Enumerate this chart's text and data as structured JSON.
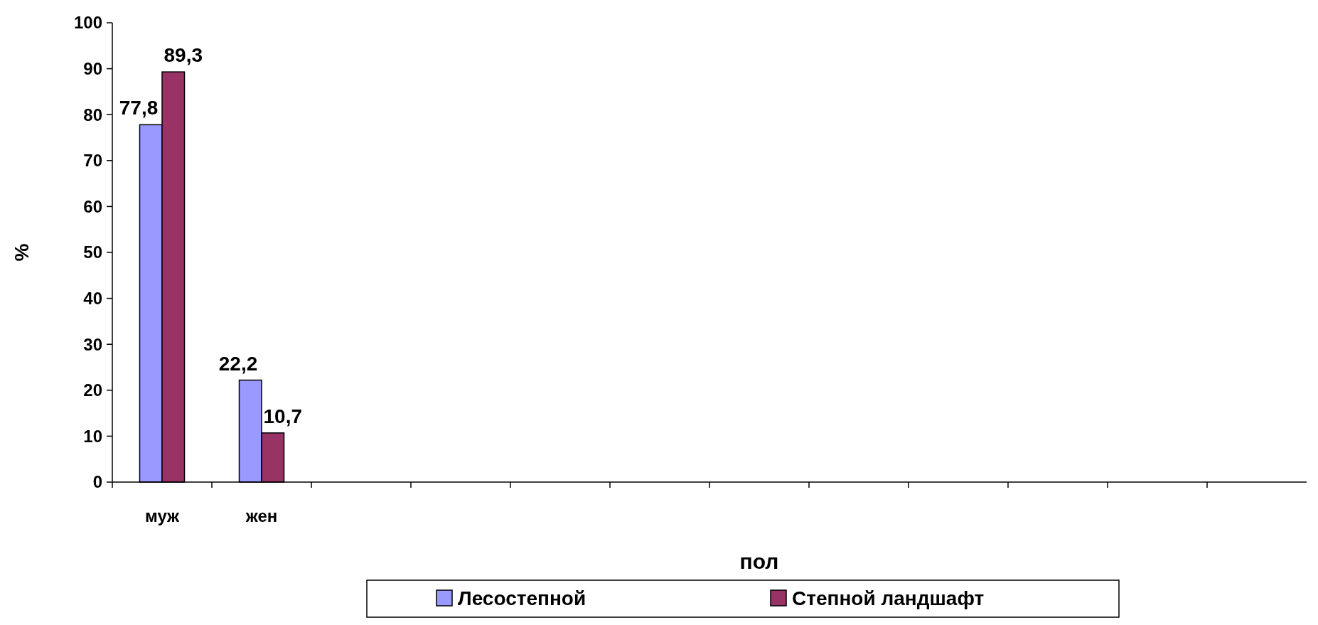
{
  "chart_data": {
    "type": "bar",
    "xlabel": "пол",
    "ylabel": "%",
    "categories": [
      "муж",
      "жен",
      null,
      null,
      null,
      null,
      null,
      null,
      null,
      null,
      null,
      null
    ],
    "series": [
      {
        "name": "Лесостепной",
        "color": "#9999ff",
        "values": [
          77.8,
          22.2,
          null,
          null,
          null,
          null,
          null,
          null,
          null,
          null,
          null,
          null
        ],
        "value_labels": [
          "77,8",
          "22,2",
          null,
          null,
          null,
          null,
          null,
          null,
          null,
          null,
          null,
          null
        ]
      },
      {
        "name": "Степной ландшафт",
        "color": "#993366",
        "values": [
          89.3,
          10.7,
          null,
          null,
          null,
          null,
          null,
          null,
          null,
          null,
          null,
          null
        ],
        "value_labels": [
          "89,3",
          "10,7",
          null,
          null,
          null,
          null,
          null,
          null,
          null,
          null,
          null,
          null
        ]
      }
    ],
    "ylim": [
      0,
      100
    ],
    "yticks": [
      0,
      10,
      20,
      30,
      40,
      50,
      60,
      70,
      80,
      90,
      100
    ],
    "legend": "bottom",
    "grid": false
  }
}
